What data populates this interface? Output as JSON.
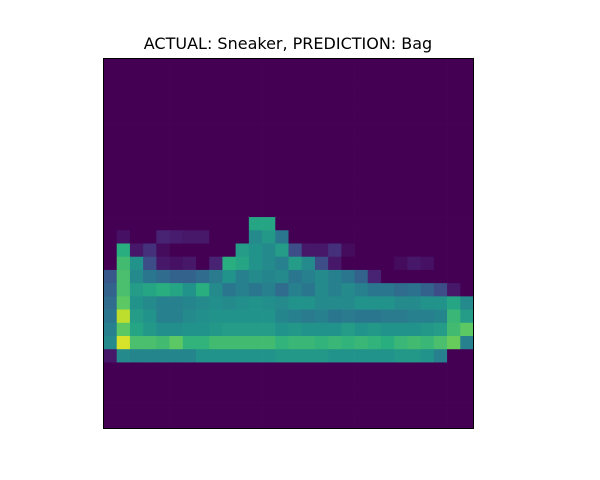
{
  "chart_data": {
    "type": "heatmap",
    "title": "ACTUAL: Sneaker, PREDICTION: Bag",
    "colormap": "viridis",
    "grid": false,
    "axes_visible": false,
    "rows": 28,
    "cols": 28,
    "value_range": [
      0,
      255
    ],
    "values": [
      [
        0,
        0,
        0,
        0,
        0,
        0,
        0,
        0,
        0,
        0,
        0,
        0,
        0,
        0,
        0,
        0,
        0,
        0,
        0,
        0,
        0,
        0,
        0,
        0,
        0,
        0,
        0,
        0
      ],
      [
        0,
        0,
        0,
        0,
        0,
        0,
        0,
        0,
        0,
        0,
        0,
        0,
        0,
        0,
        0,
        0,
        0,
        0,
        0,
        0,
        0,
        0,
        0,
        0,
        0,
        0,
        0,
        0
      ],
      [
        0,
        0,
        0,
        0,
        0,
        0,
        0,
        0,
        0,
        0,
        0,
        0,
        0,
        0,
        0,
        0,
        0,
        0,
        0,
        0,
        0,
        0,
        0,
        0,
        0,
        0,
        0,
        0
      ],
      [
        0,
        0,
        0,
        0,
        0,
        0,
        0,
        0,
        0,
        0,
        0,
        0,
        0,
        0,
        0,
        0,
        0,
        0,
        0,
        0,
        0,
        0,
        0,
        0,
        0,
        0,
        0,
        0
      ],
      [
        0,
        0,
        0,
        0,
        0,
        0,
        0,
        0,
        0,
        0,
        0,
        0,
        0,
        0,
        0,
        0,
        0,
        0,
        0,
        0,
        0,
        0,
        0,
        0,
        0,
        0,
        0,
        0
      ],
      [
        0,
        0,
        0,
        0,
        0,
        0,
        0,
        0,
        0,
        0,
        0,
        0,
        0,
        0,
        0,
        0,
        0,
        0,
        0,
        0,
        0,
        0,
        0,
        0,
        0,
        0,
        0,
        0
      ],
      [
        0,
        0,
        0,
        0,
        0,
        0,
        0,
        0,
        0,
        0,
        0,
        0,
        0,
        0,
        0,
        0,
        0,
        0,
        0,
        0,
        0,
        0,
        0,
        0,
        0,
        0,
        0,
        0
      ],
      [
        0,
        0,
        0,
        0,
        0,
        0,
        0,
        0,
        0,
        0,
        0,
        0,
        0,
        0,
        0,
        0,
        0,
        0,
        0,
        0,
        0,
        0,
        0,
        0,
        0,
        0,
        0,
        0
      ],
      [
        0,
        0,
        0,
        0,
        0,
        0,
        0,
        0,
        0,
        0,
        0,
        0,
        0,
        0,
        0,
        0,
        0,
        0,
        0,
        0,
        0,
        0,
        0,
        0,
        0,
        0,
        0,
        0
      ],
      [
        0,
        0,
        0,
        0,
        0,
        0,
        0,
        0,
        0,
        0,
        0,
        0,
        0,
        0,
        0,
        0,
        0,
        0,
        0,
        0,
        0,
        0,
        0,
        0,
        0,
        0,
        0,
        0
      ],
      [
        0,
        0,
        0,
        0,
        0,
        0,
        0,
        0,
        0,
        0,
        0,
        0,
        0,
        0,
        0,
        0,
        0,
        0,
        0,
        0,
        0,
        0,
        0,
        0,
        0,
        0,
        0,
        0
      ],
      [
        0,
        0,
        0,
        0,
        0,
        0,
        0,
        0,
        0,
        0,
        0,
        0,
        0,
        0,
        0,
        0,
        0,
        0,
        0,
        0,
        0,
        0,
        0,
        0,
        0,
        0,
        0,
        0
      ],
      [
        0,
        0,
        0,
        0,
        0,
        0,
        0,
        0,
        0,
        0,
        0,
        150,
        150,
        0,
        0,
        0,
        0,
        0,
        0,
        0,
        0,
        0,
        0,
        0,
        0,
        0,
        0,
        0
      ],
      [
        0,
        15,
        0,
        0,
        30,
        25,
        20,
        20,
        0,
        0,
        0,
        120,
        135,
        100,
        0,
        0,
        0,
        0,
        0,
        0,
        0,
        0,
        0,
        0,
        0,
        0,
        0,
        0
      ],
      [
        0,
        160,
        20,
        40,
        10,
        0,
        0,
        0,
        0,
        0,
        140,
        130,
        120,
        140,
        60,
        20,
        20,
        40,
        10,
        0,
        0,
        0,
        0,
        0,
        0,
        0,
        0,
        0
      ],
      [
        0,
        175,
        130,
        60,
        20,
        15,
        20,
        0,
        30,
        160,
        150,
        130,
        120,
        110,
        140,
        120,
        60,
        20,
        0,
        0,
        0,
        0,
        10,
        20,
        15,
        0,
        0,
        0
      ],
      [
        70,
        180,
        120,
        100,
        90,
        80,
        80,
        90,
        105,
        130,
        110,
        120,
        115,
        120,
        100,
        110,
        120,
        110,
        100,
        80,
        30,
        0,
        0,
        0,
        0,
        0,
        0,
        0
      ],
      [
        80,
        180,
        140,
        150,
        160,
        150,
        130,
        160,
        120,
        100,
        110,
        100,
        110,
        90,
        110,
        100,
        120,
        110,
        120,
        110,
        100,
        100,
        90,
        95,
        80,
        60,
        20,
        0
      ],
      [
        90,
        190,
        130,
        120,
        110,
        110,
        115,
        120,
        125,
        120,
        125,
        130,
        125,
        120,
        130,
        130,
        120,
        120,
        120,
        130,
        130,
        130,
        120,
        120,
        130,
        130,
        150,
        120
      ],
      [
        100,
        230,
        140,
        130,
        110,
        110,
        120,
        125,
        130,
        130,
        130,
        130,
        130,
        115,
        110,
        105,
        110,
        100,
        105,
        100,
        100,
        105,
        105,
        110,
        110,
        115,
        170,
        140
      ],
      [
        110,
        190,
        150,
        135,
        125,
        125,
        130,
        130,
        135,
        140,
        140,
        140,
        140,
        130,
        135,
        130,
        130,
        130,
        140,
        130,
        135,
        130,
        130,
        130,
        135,
        140,
        175,
        190
      ],
      [
        120,
        240,
        180,
        180,
        175,
        190,
        165,
        165,
        175,
        175,
        175,
        175,
        175,
        165,
        170,
        170,
        165,
        170,
        165,
        170,
        165,
        160,
        170,
        175,
        170,
        180,
        195,
        110
      ],
      [
        20,
        120,
        115,
        115,
        115,
        115,
        115,
        130,
        130,
        130,
        130,
        130,
        130,
        135,
        135,
        135,
        135,
        130,
        130,
        130,
        130,
        130,
        135,
        135,
        130,
        110,
        0,
        0
      ],
      [
        0,
        0,
        0,
        0,
        0,
        0,
        0,
        0,
        0,
        0,
        0,
        0,
        0,
        0,
        0,
        0,
        0,
        0,
        0,
        0,
        0,
        0,
        0,
        0,
        0,
        0,
        0,
        0
      ],
      [
        0,
        0,
        0,
        0,
        0,
        0,
        0,
        0,
        0,
        0,
        0,
        0,
        0,
        0,
        0,
        0,
        0,
        0,
        0,
        0,
        0,
        0,
        0,
        0,
        0,
        0,
        0,
        0
      ],
      [
        0,
        0,
        0,
        0,
        0,
        0,
        0,
        0,
        0,
        0,
        0,
        0,
        0,
        0,
        0,
        0,
        0,
        0,
        0,
        0,
        0,
        0,
        0,
        0,
        0,
        0,
        0,
        0
      ],
      [
        0,
        0,
        0,
        0,
        0,
        0,
        0,
        0,
        0,
        0,
        0,
        0,
        0,
        0,
        0,
        0,
        0,
        0,
        0,
        0,
        0,
        0,
        0,
        0,
        0,
        0,
        0,
        0
      ],
      [
        0,
        0,
        0,
        0,
        0,
        0,
        0,
        0,
        0,
        0,
        0,
        0,
        0,
        0,
        0,
        0,
        0,
        0,
        0,
        0,
        0,
        0,
        0,
        0,
        0,
        0,
        0,
        0
      ]
    ]
  },
  "colors": {
    "background": "#ffffff",
    "axes_frame": "#000000",
    "colormap_low": "#440154",
    "colormap_high": "#fde725"
  }
}
